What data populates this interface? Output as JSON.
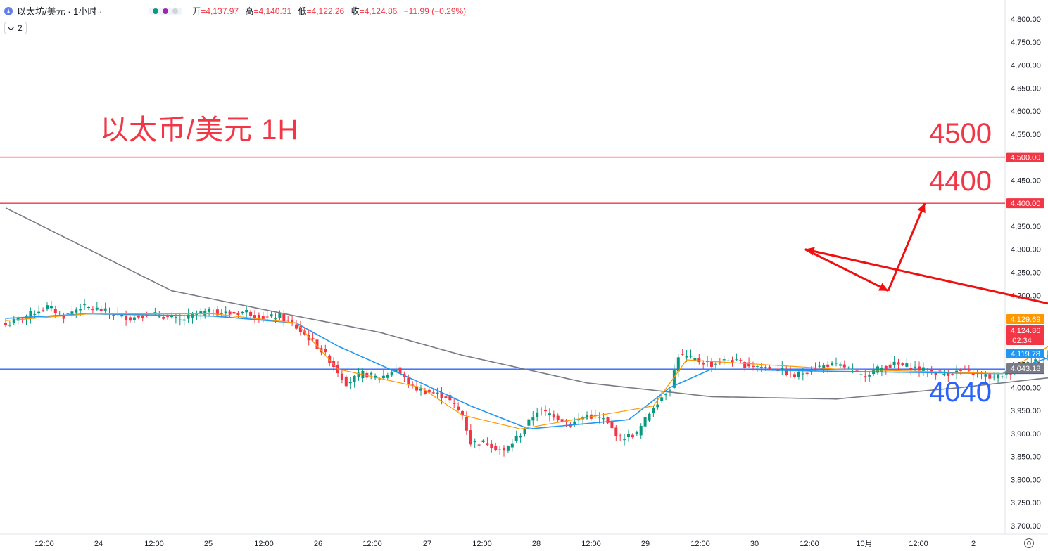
{
  "header": {
    "symbol": "以太坊/美元 · 1小时 ·",
    "open_label": "开",
    "open_value": "=4,137.97",
    "high_label": "高",
    "high_value": "=4,140.31",
    "low_label": "低",
    "low_value": "=4,122.26",
    "close_label": "收",
    "close_value": "=4,124.86",
    "change": "−11.99 (−0.29%)",
    "indicator_count": "2"
  },
  "annotations": {
    "title": "以太币/美元 1H",
    "level_4500": "4500",
    "level_4400": "4400",
    "level_4040": "4040"
  },
  "colors": {
    "up": "#089981",
    "down": "#f23645",
    "ema_fast": "#ff9800",
    "ema_mid": "#2196f3",
    "ma_slow": "#787b86",
    "resistance": "#f23645",
    "support": "#2962ff"
  },
  "chart_data": {
    "type": "candlestick",
    "interval": "1H",
    "y_axis": {
      "ylim": [
        3680,
        4820
      ],
      "ticks": [
        "4,800.00",
        "4,750.00",
        "4,700.00",
        "4,650.00",
        "4,600.00",
        "4,550.00",
        "4,500.00",
        "4,450.00",
        "4,400.00",
        "4,350.00",
        "4,300.00",
        "4,250.00",
        "4,200.00",
        "4,150.00",
        "4,100.00",
        "4,050.00",
        "4,000.00",
        "3,950.00",
        "3,900.00",
        "3,850.00",
        "3,800.00",
        "3,750.00",
        "3,700.00"
      ]
    },
    "x_axis": {
      "ticks": [
        "12:00",
        "24",
        "12:00",
        "25",
        "12:00",
        "26",
        "12:00",
        "27",
        "12:00",
        "28",
        "12:00",
        "29",
        "12:00",
        "30",
        "12:00",
        "10月",
        "12:00",
        "2"
      ]
    },
    "horizontal_lines": [
      {
        "price": 4500,
        "label": "4,500.00",
        "color": "#f23645"
      },
      {
        "price": 4400,
        "label": "4,400.00",
        "color": "#f23645"
      },
      {
        "price": 4040,
        "label": "4,040.00",
        "color": "#2962ff"
      }
    ],
    "price_labels": [
      {
        "price": 4129.69,
        "label": "4,129.69",
        "color": "#ff9800"
      },
      {
        "price": 4124.86,
        "label": "4,124.86",
        "sub": "02:34",
        "color": "#f23645"
      },
      {
        "price": 4119.78,
        "label": "4,119.78",
        "color": "#2196f3"
      },
      {
        "price": 4043.18,
        "label": "4,043.18",
        "color": "#787b86"
      }
    ],
    "last_price": 4124.86,
    "candle_anchors": [
      [
        0,
        4135
      ],
      [
        6,
        4160
      ],
      [
        10,
        4175
      ],
      [
        14,
        4155
      ],
      [
        18,
        4175
      ],
      [
        22,
        4170
      ],
      [
        26,
        4160
      ],
      [
        30,
        4150
      ],
      [
        34,
        4160
      ],
      [
        38,
        4155
      ],
      [
        42,
        4145
      ],
      [
        46,
        4160
      ],
      [
        50,
        4165
      ],
      [
        54,
        4160
      ],
      [
        58,
        4165
      ],
      [
        62,
        4150
      ],
      [
        66,
        4155
      ],
      [
        70,
        4130
      ],
      [
        74,
        4100
      ],
      [
        78,
        4060
      ],
      [
        82,
        4010
      ],
      [
        86,
        4030
      ],
      [
        90,
        4020
      ],
      [
        94,
        4040
      ],
      [
        98,
        4000
      ],
      [
        102,
        3990
      ],
      [
        106,
        3980
      ],
      [
        110,
        3940
      ],
      [
        112,
        3880
      ],
      [
        116,
        3880
      ],
      [
        120,
        3860
      ],
      [
        124,
        3900
      ],
      [
        128,
        3950
      ],
      [
        132,
        3940
      ],
      [
        136,
        3920
      ],
      [
        140,
        3940
      ],
      [
        144,
        3930
      ],
      [
        148,
        3890
      ],
      [
        152,
        3900
      ],
      [
        156,
        3960
      ],
      [
        160,
        4000
      ],
      [
        162,
        4070
      ],
      [
        166,
        4060
      ],
      [
        170,
        4050
      ],
      [
        174,
        4060
      ],
      [
        178,
        4050
      ],
      [
        182,
        4045
      ],
      [
        186,
        4040
      ],
      [
        190,
        4025
      ],
      [
        194,
        4040
      ],
      [
        198,
        4050
      ],
      [
        202,
        4045
      ],
      [
        206,
        4025
      ],
      [
        210,
        4040
      ],
      [
        214,
        4050
      ],
      [
        218,
        4045
      ],
      [
        222,
        4035
      ],
      [
        226,
        4030
      ],
      [
        230,
        4035
      ],
      [
        234,
        4030
      ],
      [
        238,
        4020
      ],
      [
        242,
        4035
      ],
      [
        246,
        4050
      ],
      [
        250,
        4065
      ],
      [
        254,
        4080
      ],
      [
        256,
        4150
      ],
      [
        258,
        4150
      ],
      [
        262,
        4135
      ],
      [
        266,
        4130
      ],
      [
        270,
        4120
      ],
      [
        274,
        4135
      ],
      [
        276,
        4130
      ],
      [
        278,
        4124.86
      ]
    ],
    "indicator_anchors": {
      "ema_fast": [
        [
          0,
          4145
        ],
        [
          20,
          4160
        ],
        [
          50,
          4160
        ],
        [
          70,
          4140
        ],
        [
          80,
          4040
        ],
        [
          100,
          4000
        ],
        [
          110,
          3940
        ],
        [
          124,
          3910
        ],
        [
          140,
          3935
        ],
        [
          156,
          3960
        ],
        [
          164,
          4060
        ],
        [
          200,
          4040
        ],
        [
          240,
          4030
        ],
        [
          255,
          4110
        ],
        [
          262,
          4135
        ],
        [
          278,
          4129.69
        ]
      ],
      "ema_mid": [
        [
          0,
          4150
        ],
        [
          20,
          4160
        ],
        [
          50,
          4155
        ],
        [
          70,
          4140
        ],
        [
          80,
          4090
        ],
        [
          100,
          4010
        ],
        [
          112,
          3960
        ],
        [
          126,
          3910
        ],
        [
          150,
          3930
        ],
        [
          160,
          4000
        ],
        [
          170,
          4040
        ],
        [
          200,
          4035
        ],
        [
          240,
          4030
        ],
        [
          256,
          4080
        ],
        [
          266,
          4110
        ],
        [
          278,
          4119.78
        ]
      ],
      "ma_slow": [
        [
          0,
          4390
        ],
        [
          20,
          4300
        ],
        [
          40,
          4210
        ],
        [
          70,
          4155
        ],
        [
          90,
          4120
        ],
        [
          110,
          4070
        ],
        [
          140,
          4010
        ],
        [
          170,
          3980
        ],
        [
          200,
          3975
        ],
        [
          230,
          4000
        ],
        [
          250,
          4020
        ],
        [
          278,
          4043.18
        ]
      ]
    },
    "projection": [
      [
        4300,
        1
      ],
      [
        4210,
        2
      ],
      [
        4400,
        3
      ]
    ]
  }
}
